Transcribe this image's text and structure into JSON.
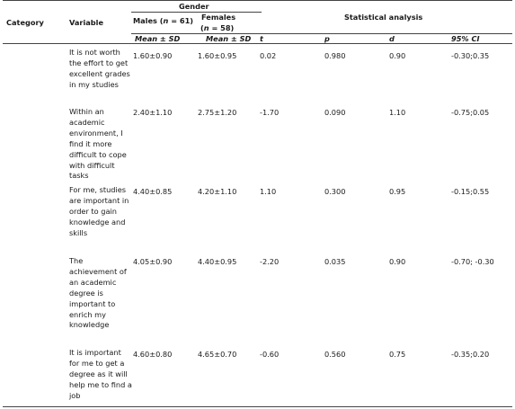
{
  "header": {
    "category": "Category",
    "variable": "Variable",
    "gender": "Gender",
    "males_prefix": "Males (",
    "males_n": "n",
    "males_suffix": " = 61)",
    "females_line1": "Females",
    "females_open": "(",
    "females_n": "n",
    "females_suffix": " = 58)",
    "statistical_analysis": "Statistical analysis",
    "sub": {
      "mean_sd_males": "Mean ± SD",
      "mean_sd_females": "Mean ± SD",
      "t": "t",
      "p": "p",
      "d": "d",
      "ci": "95% CI"
    }
  },
  "rows": [
    {
      "variable": "It is not worth the effort to get excellent grades in my studies",
      "males": "1.60±0.90",
      "females": "1.60±0.95",
      "t": "0.02",
      "p": "0.980",
      "d": "0.90",
      "ci": "-0.30;0.35"
    },
    {
      "variable": "Within an academic environment, I find it more difficult to cope with difficult tasks",
      "males": "2.40±1.10",
      "females": "2.75±1.20",
      "t": "-1.70",
      "p": "0.090",
      "d": "1.10",
      "ci": "-0.75;0.05"
    },
    {
      "variable": "For me, studies are important in order to gain knowledge and skills",
      "males": "4.40±0.85",
      "females": "4.20±1.10",
      "t": "1.10",
      "p": "0.300",
      "d": "0.95",
      "ci": "-0.15;0.55"
    },
    {
      "variable": "The achievement of an academic degree is important to enrich my knowledge",
      "males": "4.05±0.90",
      "females": "4.40±0.95",
      "t": "-2.20",
      "p": "0.035",
      "d": "0.90",
      "ci": "-0.70; -0.30"
    },
    {
      "variable": "It is important for me to get a degree as it will help me to find a job",
      "males": "4.60±0.80",
      "females": "4.65±0.70",
      "t": "-0.60",
      "p": "0.560",
      "d": "0.75",
      "ci": "-0.35;0.20"
    }
  ]
}
